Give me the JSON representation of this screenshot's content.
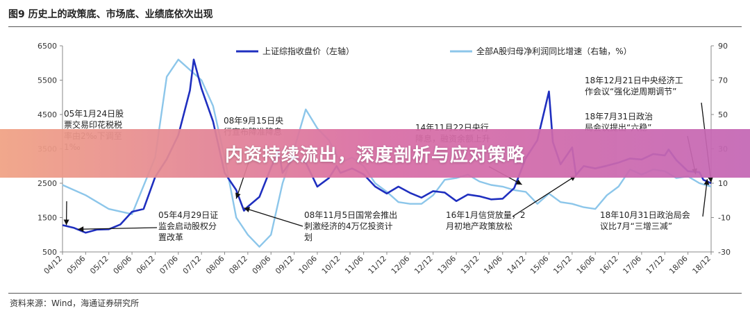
{
  "figure": {
    "title": "图9 历史上的政策底、市场底、业绩底依次出现",
    "source": "资料来源：Wind，海通证券研究所"
  },
  "banner": {
    "text": "内资持续流出，深度剖析与应对策略"
  },
  "colors": {
    "index": "#1f2fbf",
    "earnings": "#8cc6ea",
    "axis": "#888888",
    "arrow": "#111111"
  },
  "chart_data": {
    "type": "line",
    "x_tick_labels": [
      "04/12",
      "05/06",
      "05/12",
      "06/06",
      "06/12",
      "07/06",
      "07/12",
      "08/06",
      "08/12",
      "09/06",
      "09/12",
      "10/06",
      "10/12",
      "11/06",
      "11/12",
      "12/06",
      "12/12",
      "13/06",
      "13/12",
      "14/06",
      "14/12",
      "15/06",
      "15/12",
      "16/06",
      "16/12",
      "17/06",
      "17/12",
      "18/06",
      "18/12"
    ],
    "y_left": {
      "ticks": [
        500,
        1500,
        2500,
        3500,
        4500,
        5500,
        6500
      ],
      "range": [
        500,
        6500
      ]
    },
    "y_right": {
      "ticks": [
        -30,
        -10,
        10,
        30,
        50,
        70,
        90
      ],
      "range": [
        -30,
        90
      ]
    },
    "series": [
      {
        "name": "上证综指收盘价（左轴）",
        "axis": "left",
        "points": [
          [
            "04/12",
            1280
          ],
          [
            "05/03",
            1200
          ],
          [
            "05/06",
            1060
          ],
          [
            "05/09",
            1150
          ],
          [
            "05/12",
            1160
          ],
          [
            "06/03",
            1300
          ],
          [
            "06/06",
            1670
          ],
          [
            "06/09",
            1750
          ],
          [
            "06/12",
            2680
          ],
          [
            "07/03",
            3200
          ],
          [
            "07/06",
            3900
          ],
          [
            "07/09",
            5200
          ],
          [
            "07/10",
            6100
          ],
          [
            "07/12",
            5260
          ],
          [
            "08/03",
            4300
          ],
          [
            "08/06",
            2800
          ],
          [
            "08/09",
            2300
          ],
          [
            "08/11",
            1700
          ],
          [
            "08/12",
            1820
          ],
          [
            "09/03",
            2100
          ],
          [
            "09/06",
            2950
          ],
          [
            "09/08",
            3450
          ],
          [
            "09/09",
            2800
          ],
          [
            "09/12",
            3270
          ],
          [
            "10/03",
            3100
          ],
          [
            "10/06",
            2400
          ],
          [
            "10/09",
            2650
          ],
          [
            "10/11",
            3000
          ],
          [
            "10/12",
            2800
          ],
          [
            "11/03",
            2930
          ],
          [
            "11/06",
            2760
          ],
          [
            "11/09",
            2400
          ],
          [
            "11/12",
            2200
          ],
          [
            "12/03",
            2400
          ],
          [
            "12/06",
            2220
          ],
          [
            "12/09",
            2080
          ],
          [
            "12/12",
            2270
          ],
          [
            "13/03",
            2230
          ],
          [
            "13/06",
            1980
          ],
          [
            "13/09",
            2170
          ],
          [
            "13/12",
            2120
          ],
          [
            "14/03",
            2030
          ],
          [
            "14/06",
            2050
          ],
          [
            "14/09",
            2360
          ],
          [
            "14/12",
            3230
          ],
          [
            "15/03",
            3750
          ],
          [
            "15/06",
            5170
          ],
          [
            "15/07",
            3700
          ],
          [
            "15/09",
            3050
          ],
          [
            "15/12",
            3540
          ],
          [
            "16/01",
            2740
          ],
          [
            "16/03",
            3000
          ],
          [
            "16/06",
            2930
          ],
          [
            "16/09",
            3010
          ],
          [
            "16/12",
            3100
          ],
          [
            "17/03",
            3220
          ],
          [
            "17/06",
            3190
          ],
          [
            "17/09",
            3350
          ],
          [
            "17/12",
            3310
          ],
          [
            "18/01",
            3480
          ],
          [
            "18/03",
            3170
          ],
          [
            "18/06",
            2850
          ],
          [
            "18/09",
            2820
          ],
          [
            "18/10",
            2600
          ],
          [
            "18/12",
            2500
          ]
        ]
      },
      {
        "name": "全部A股归母净利润同比增速（右轴，%）",
        "axis": "right",
        "points": [
          [
            "04/12",
            9
          ],
          [
            "05/06",
            3
          ],
          [
            "05/12",
            -5
          ],
          [
            "06/06",
            -8
          ],
          [
            "06/12",
            25
          ],
          [
            "07/03",
            72
          ],
          [
            "07/06",
            82
          ],
          [
            "07/12",
            70
          ],
          [
            "08/03",
            55
          ],
          [
            "08/06",
            25
          ],
          [
            "08/09",
            -10
          ],
          [
            "08/12",
            -20
          ],
          [
            "09/03",
            -27
          ],
          [
            "09/06",
            -20
          ],
          [
            "09/09",
            10
          ],
          [
            "09/12",
            30
          ],
          [
            "10/03",
            53
          ],
          [
            "10/06",
            42
          ],
          [
            "10/09",
            35
          ],
          [
            "10/12",
            22
          ],
          [
            "11/03",
            25
          ],
          [
            "11/06",
            20
          ],
          [
            "11/09",
            10
          ],
          [
            "11/12",
            5
          ],
          [
            "12/03",
            -1
          ],
          [
            "12/06",
            -2
          ],
          [
            "12/09",
            -2
          ],
          [
            "12/12",
            3
          ],
          [
            "13/03",
            12
          ],
          [
            "13/06",
            13
          ],
          [
            "13/09",
            15
          ],
          [
            "13/12",
            11
          ],
          [
            "14/03",
            9
          ],
          [
            "14/06",
            8
          ],
          [
            "14/09",
            6
          ],
          [
            "14/12",
            5
          ],
          [
            "15/03",
            -2
          ],
          [
            "15/06",
            4
          ],
          [
            "15/09",
            -1
          ],
          [
            "15/12",
            -2
          ],
          [
            "16/03",
            -4
          ],
          [
            "16/06",
            -5
          ],
          [
            "16/09",
            3
          ],
          [
            "16/12",
            8
          ],
          [
            "17/03",
            18
          ],
          [
            "17/06",
            15
          ],
          [
            "17/09",
            18
          ],
          [
            "17/12",
            17
          ],
          [
            "18/03",
            13
          ],
          [
            "18/06",
            14
          ],
          [
            "18/09",
            10
          ],
          [
            "18/12",
            8
          ]
        ]
      }
    ],
    "annotations": [
      {
        "lines": [
          "05年1月24日股",
          "票交易印花税税",
          "率由2‰下调至",
          "1‰"
        ],
        "target": [
          "05/01",
          1280
        ]
      },
      {
        "lines": [
          "05年4月29日证",
          "监会启动股权分",
          "置改革"
        ],
        "target": [
          "05/04",
          1160
        ]
      },
      {
        "lines": [
          "08年9月15日央",
          "行宣布降准降息"
        ],
        "target": [
          "08/09",
          2050
        ]
      },
      {
        "lines": [
          "08年11月5日国常会推出",
          "刺激经济的4万亿投资计",
          "划"
        ],
        "target": [
          "08/11",
          1780
        ]
      },
      {
        "lines": [
          "14年11月22日央行",
          "降息，融资余额上升"
        ],
        "target": [
          "14/11",
          2460
        ]
      },
      {
        "lines": [
          "16年1月信贷放量，2",
          "月初地产政策放松"
        ],
        "target": [
          "16/01",
          2720
        ]
      },
      {
        "lines": [
          "18年12月21日中央经济工",
          "作会议“强化逆周期调节”"
        ],
        "target": [
          "18/12",
          2520
        ]
      },
      {
        "lines": [
          "18年7月31日政治",
          "局会议提出“六稳”"
        ],
        "target": [
          "18/08",
          2760
        ]
      },
      {
        "lines": [
          "18年10月31日政治局会",
          "议比7月“三增三减”"
        ],
        "target": [
          "18/11",
          2620
        ]
      }
    ]
  }
}
